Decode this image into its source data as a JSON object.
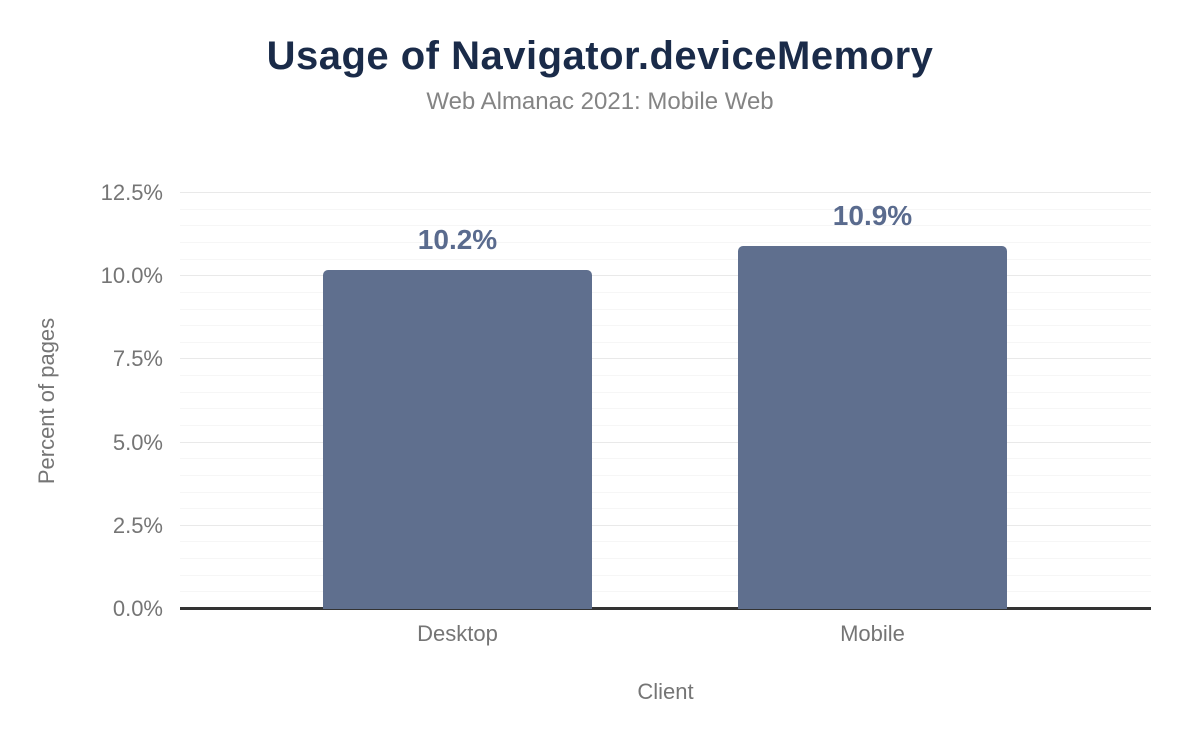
{
  "chart_data": {
    "type": "bar",
    "title": "Usage of Navigator.deviceMemory",
    "subtitle": "Web Almanac 2021: Mobile Web",
    "categories": [
      "Desktop",
      "Mobile"
    ],
    "values": [
      10.2,
      10.9
    ],
    "value_labels": [
      "10.2%",
      "10.9%"
    ],
    "xlabel": "Client",
    "ylabel": "Percent of pages",
    "ylim": [
      0,
      12.5
    ],
    "yticks": [
      0,
      2.5,
      5,
      7.5,
      10,
      12.5
    ],
    "ytick_labels": [
      "0.0%",
      "2.5%",
      "5.0%",
      "7.5%",
      "10.0%",
      "12.5%"
    ],
    "minor_grid_step": 0.5,
    "grid": "on",
    "legend_position": "none",
    "colors": {
      "title": "#1a2b49",
      "subtitle": "#848484",
      "bar_fill": "#5f6f8e",
      "value_label": "#5a6b8e",
      "axis_text": "#757575",
      "major_gridline": "#e9e9e9",
      "minor_gridline": "#f6f6f6",
      "baseline": "#333333",
      "background": "#ffffff"
    }
  }
}
